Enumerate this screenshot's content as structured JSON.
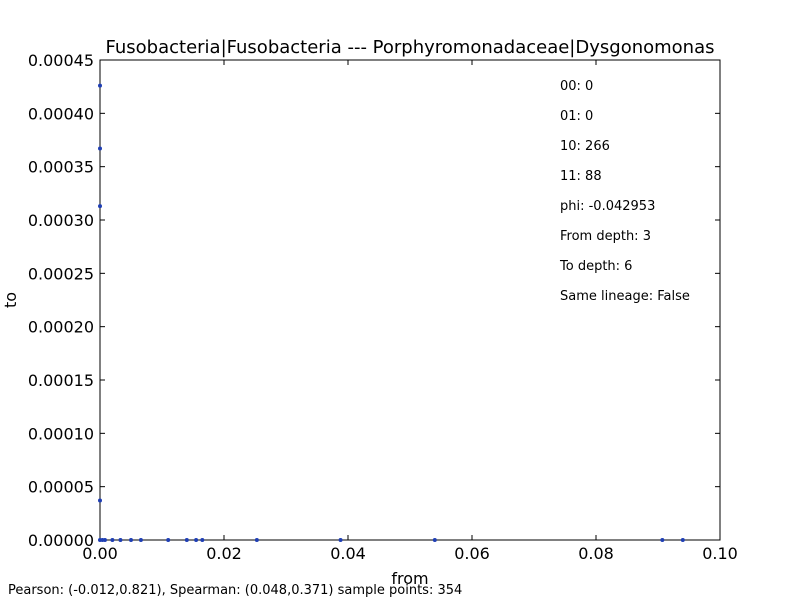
{
  "chart_data": {
    "type": "scatter",
    "title": "Fusobacteria|Fusobacteria --- Porphyromonadaceae|Dysgonomonas",
    "xlabel": "from",
    "ylabel": "to",
    "xlim": [
      0.0,
      0.1
    ],
    "ylim": [
      0.0,
      0.00045
    ],
    "x_ticks": [
      "0.00",
      "0.02",
      "0.04",
      "0.06",
      "0.08",
      "0.10"
    ],
    "y_ticks": [
      "0.00000",
      "0.00005",
      "0.00010",
      "0.00015",
      "0.00020",
      "0.00025",
      "0.00030",
      "0.00035",
      "0.00040",
      "0.00045"
    ],
    "x_tick_values": [
      0.0,
      0.02,
      0.04,
      0.06,
      0.08,
      0.1
    ],
    "y_tick_values": [
      0.0,
      5e-05,
      0.0001,
      0.00015,
      0.0002,
      0.00025,
      0.0003,
      0.00035,
      0.0004,
      0.00045
    ],
    "grid": false,
    "marker_color": "#1f3fb4",
    "points": [
      {
        "x": 0.0,
        "y": 0.000426
      },
      {
        "x": 0.0,
        "y": 0.000367
      },
      {
        "x": 0.0,
        "y": 0.000313
      },
      {
        "x": 0.0,
        "y": 3.7e-05
      },
      {
        "x": 0.0,
        "y": 0.0
      },
      {
        "x": 0.0004,
        "y": 0.0
      },
      {
        "x": 0.0008,
        "y": 0.0
      },
      {
        "x": 0.002,
        "y": 0.0
      },
      {
        "x": 0.0033,
        "y": 0.0
      },
      {
        "x": 0.005,
        "y": 0.0
      },
      {
        "x": 0.0066,
        "y": 0.0
      },
      {
        "x": 0.011,
        "y": 0.0
      },
      {
        "x": 0.014,
        "y": 0.0
      },
      {
        "x": 0.0155,
        "y": 0.0
      },
      {
        "x": 0.0165,
        "y": 0.0
      },
      {
        "x": 0.0253,
        "y": 0.0
      },
      {
        "x": 0.0388,
        "y": 0.0
      },
      {
        "x": 0.054,
        "y": 0.0
      },
      {
        "x": 0.0907,
        "y": 0.0
      },
      {
        "x": 0.094,
        "y": 0.0
      }
    ],
    "annotations": [
      "00: 0",
      "01: 0",
      "10: 266",
      "11: 88",
      "phi: -0.042953",
      "From depth: 3",
      "To depth: 6",
      "Same lineage: False"
    ],
    "footer": "Pearson: (-0.012,0.821), Spearman: (0.048,0.371) sample points: 354"
  }
}
